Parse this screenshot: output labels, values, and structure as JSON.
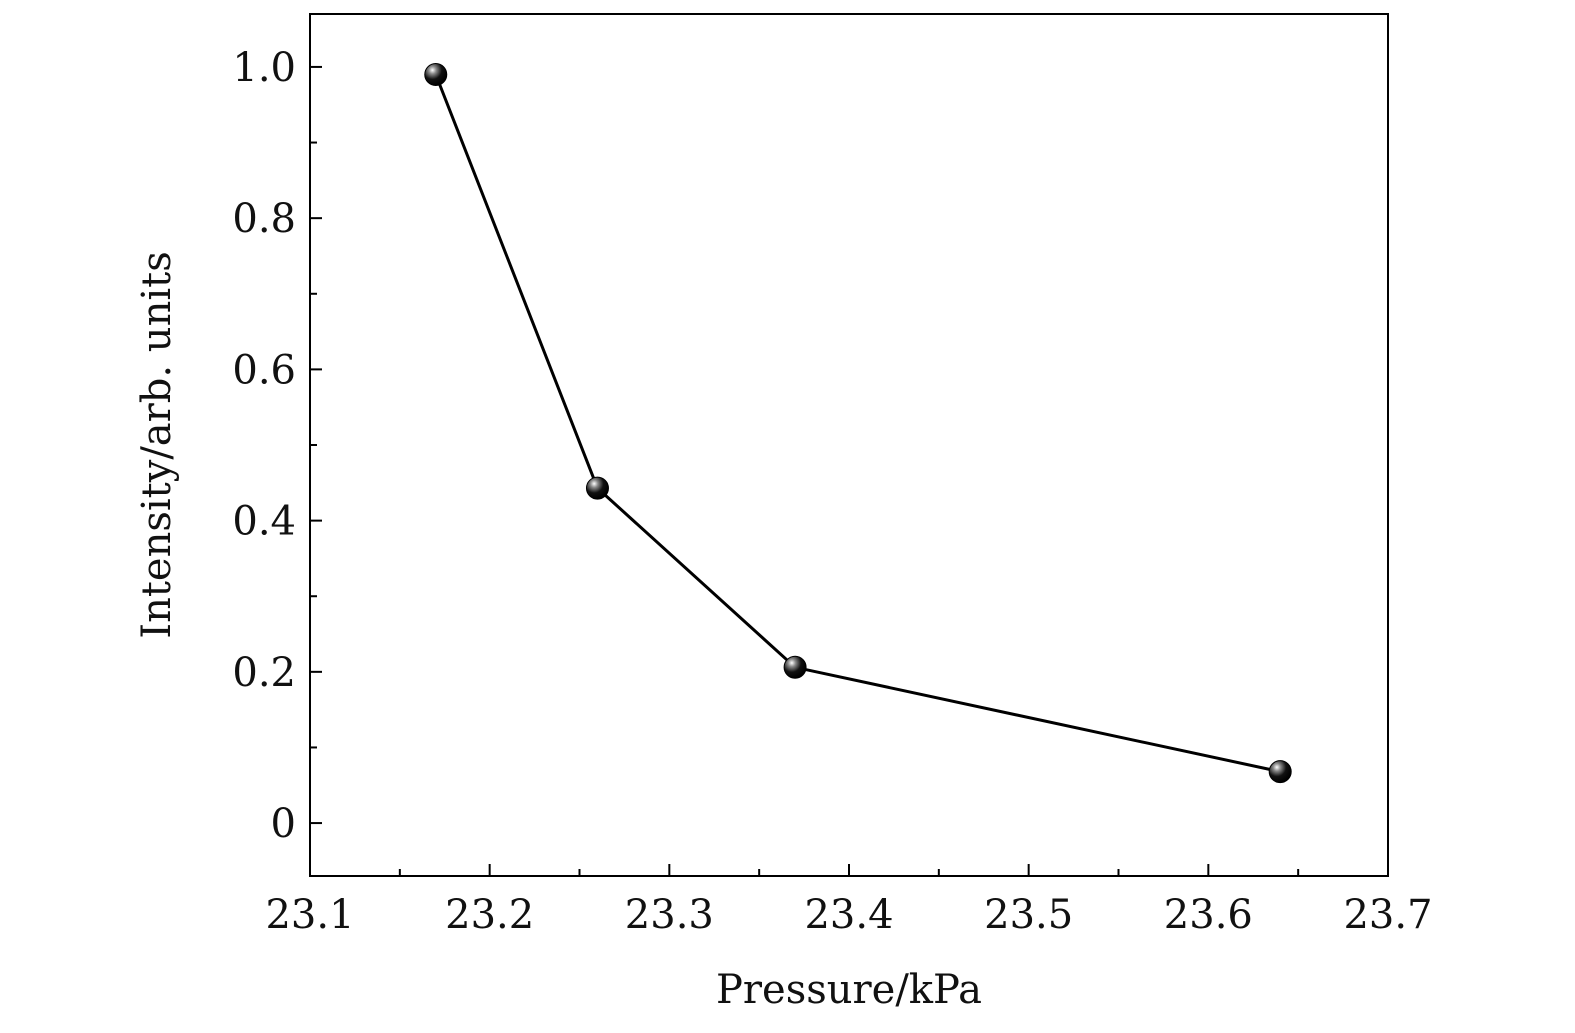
{
  "chart_data": {
    "type": "line",
    "title": "",
    "xlabel": "Pressure/kPa",
    "ylabel": "Intensity/arb. units",
    "xlim": [
      23.1,
      23.7
    ],
    "ylim": [
      -0.07,
      1.07
    ],
    "xticks": [
      23.1,
      23.2,
      23.3,
      23.4,
      23.5,
      23.6,
      23.7
    ],
    "xtick_labels": [
      "23.1",
      "23.2",
      "23.3",
      "23.4",
      "23.5",
      "23.6",
      "23.7"
    ],
    "yticks": [
      0,
      0.2,
      0.4,
      0.6,
      0.8,
      1.0
    ],
    "ytick_labels": [
      "0",
      "0.2",
      "0.4",
      "0.6",
      "0.8",
      "1.0"
    ],
    "grid": false,
    "series": [
      {
        "name": "Intensity",
        "x": [
          23.17,
          23.26,
          23.37,
          23.64
        ],
        "y": [
          0.99,
          0.443,
          0.206,
          0.068
        ],
        "color": "#000000",
        "marker": "sphere"
      }
    ]
  }
}
